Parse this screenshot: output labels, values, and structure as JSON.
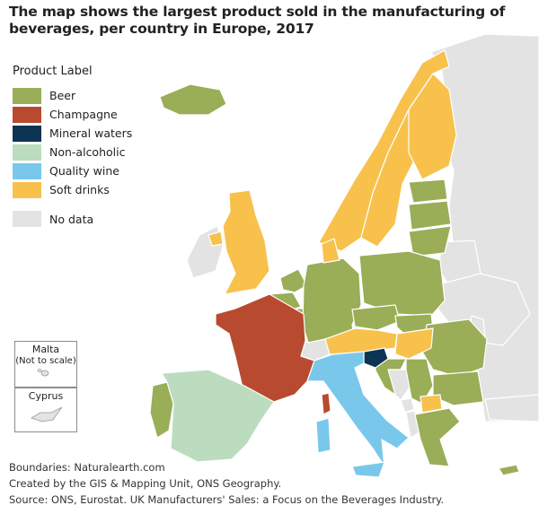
{
  "title": "The map shows the largest product sold in the manufacturing of beverages, per country in Europe, 2017",
  "legend": {
    "heading": "Product Label",
    "items": [
      {
        "label": "Beer",
        "color": "#9aad57"
      },
      {
        "label": "Champagne",
        "color": "#b84a30"
      },
      {
        "label": "Mineral waters",
        "color": "#0d3453"
      },
      {
        "label": "Non-alcoholic",
        "color": "#bcdcbf"
      },
      {
        "label": "Quality wine",
        "color": "#79c8ec"
      },
      {
        "label": "Soft drinks",
        "color": "#f7c14c"
      }
    ],
    "no_data": {
      "label": "No data",
      "color": "#e3e3e3"
    }
  },
  "insets": {
    "malta": {
      "name": "Malta",
      "note": "(Not to scale)"
    },
    "cyprus": {
      "name": "Cyprus"
    }
  },
  "footer": {
    "boundaries": "Boundaries: Naturalearth.com",
    "credit": "Created by the GIS & Mapping Unit, ONS Geography.",
    "source": "Source: ONS, Eurostat. UK Manufacturers' Sales: a Focus on the Beverages Industry."
  },
  "countries": {
    "Iceland": "Beer",
    "Norway": "Soft drinks",
    "Sweden": "Soft drinks",
    "Finland": "Soft drinks",
    "Estonia": "Beer",
    "Latvia": "Beer",
    "Lithuania": "Beer",
    "United Kingdom": "Soft drinks",
    "Ireland": "No data",
    "Denmark": "Soft drinks",
    "Netherlands": "Beer",
    "Belgium": "Beer",
    "Luxembourg": "Beer",
    "Germany": "Beer",
    "Poland": "Beer",
    "Czechia": "Beer",
    "Slovakia": "Beer",
    "Austria": "Soft drinks",
    "Hungary": "Soft drinks",
    "Slovenia": "Mineral waters",
    "Switzerland": "No data",
    "France": "Champagne",
    "Spain": "Non-alcoholic",
    "Portugal": "Beer",
    "Italy": "Quality wine",
    "Croatia": "Beer",
    "Romania": "Beer",
    "Bulgaria": "Beer",
    "Serbia": "Beer",
    "Bosnia and Herzegovina": "No data",
    "Montenegro": "No data",
    "North Macedonia": "Soft drinks",
    "Greece": "Beer",
    "Cyprus": "Beer",
    "Malta": "No data",
    "Russia": "No data",
    "Belarus": "No data",
    "Ukraine": "No data",
    "Moldova": "No data",
    "Turkey": "No data",
    "Albania": "No data"
  }
}
